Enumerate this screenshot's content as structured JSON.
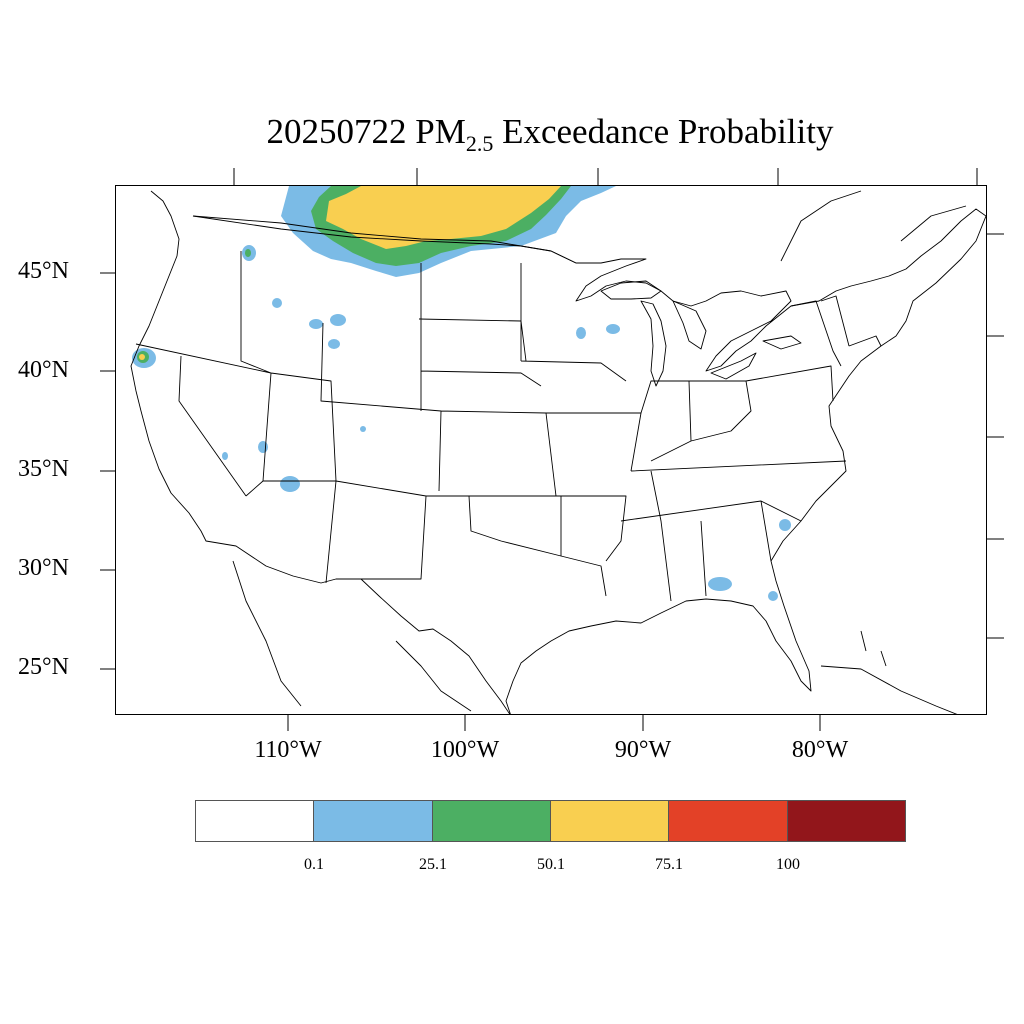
{
  "title": {
    "date": "20250722",
    "pm": "PM",
    "sub": "2.5",
    "rest": "Exceedance Probability"
  },
  "latitude_labels": [
    "45°N",
    "40°N",
    "35°N",
    "30°N",
    "25°N"
  ],
  "longitude_labels": [
    "110°W",
    "100°W",
    "90°W",
    "80°W"
  ],
  "colorbar": {
    "colors": [
      "#ffffff",
      "#7bbbe6",
      "#4caf63",
      "#f9cf50",
      "#e34127",
      "#92161b"
    ],
    "labels": [
      "0.1",
      "25.1",
      "50.1",
      "75.1",
      "100"
    ]
  },
  "map": {
    "region": "Contiguous United States",
    "extent_lon": [
      -119.5,
      -74.5
    ],
    "extent_lat": [
      22.5,
      49.5
    ]
  }
}
